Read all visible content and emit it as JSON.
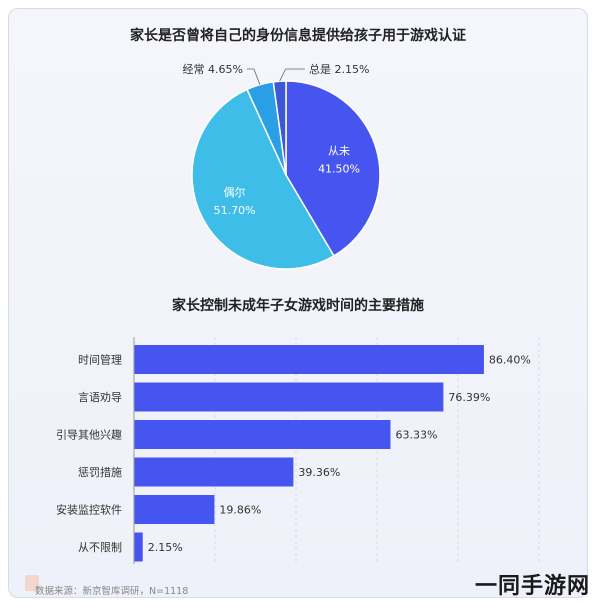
{
  "chart_data": [
    {
      "type": "pie",
      "title": "家长是否曾将自己的身份信息提供给孩子用于游戏认证",
      "slices": [
        {
          "label": "从未",
          "value": 41.5,
          "display": "41.50%",
          "color": "#4655f0"
        },
        {
          "label": "偶尔",
          "value": 51.7,
          "display": "51.70%",
          "color": "#3dbde8"
        },
        {
          "label": "经常",
          "value": 4.65,
          "display": "4.65%",
          "color": "#2b9fe6"
        },
        {
          "label": "总是",
          "value": 2.15,
          "display": "2.15%",
          "color": "#3d57d6"
        }
      ]
    },
    {
      "type": "bar",
      "orientation": "horizontal",
      "title": "家长控制未成年子女游戏时间的主要措施",
      "categories": [
        "时间管理",
        "言语劝导",
        "引导其他兴趣",
        "惩罚措施",
        "安装监控软件",
        "从不限制"
      ],
      "values": [
        86.4,
        76.39,
        63.33,
        39.36,
        19.86,
        2.15
      ],
      "labels": [
        "86.40%",
        "76.39%",
        "63.33%",
        "39.36%",
        "19.86%",
        "2.15%"
      ],
      "xlim": [
        0,
        100
      ],
      "color": "#4655f0",
      "grid": true
    }
  ],
  "source": "数据来源：新京智库调研，N=1118",
  "watermark": "一同手游网"
}
